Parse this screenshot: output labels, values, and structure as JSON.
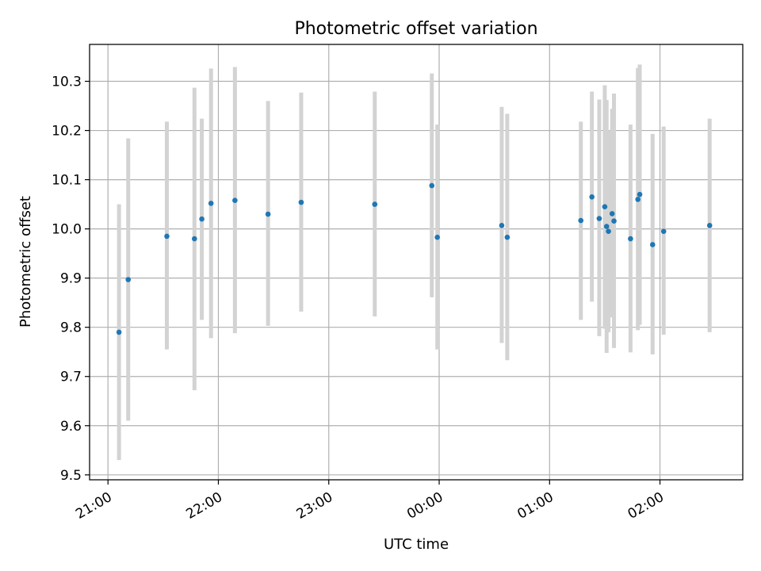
{
  "chart_data": {
    "type": "scatter",
    "title": "Photometric offset variation",
    "xlabel": "UTC time",
    "ylabel": "Photometric offset",
    "xlim_minutes": [
      -10,
      345
    ],
    "ylim": [
      9.49,
      10.375
    ],
    "grid": true,
    "colors": {
      "point": "#1f77b4",
      "errorbar": "#d3d3d3",
      "grid": "#b0b0b0"
    },
    "x_tick_labels": [
      "21:00",
      "22:00",
      "23:00",
      "00:00",
      "01:00",
      "02:00"
    ],
    "x_tick_minutes": [
      0,
      60,
      120,
      180,
      240,
      300
    ],
    "y_ticks": [
      9.5,
      9.6,
      9.7,
      9.8,
      9.9,
      10.0,
      10.1,
      10.2,
      10.3
    ],
    "y_tick_labels": [
      "9.5",
      "9.6",
      "9.7",
      "9.8",
      "9.9",
      "10.0",
      "10.1",
      "10.2",
      "10.3"
    ],
    "points": [
      {
        "time": "21:06",
        "y": 9.79,
        "lo": 9.53,
        "hi": 10.05
      },
      {
        "time": "21:11",
        "y": 9.897,
        "lo": 9.61,
        "hi": 10.184
      },
      {
        "time": "21:32",
        "y": 9.985,
        "lo": 9.755,
        "hi": 10.218
      },
      {
        "time": "21:47",
        "y": 9.98,
        "lo": 9.672,
        "hi": 10.287
      },
      {
        "time": "21:51",
        "y": 10.02,
        "lo": 9.815,
        "hi": 10.224
      },
      {
        "time": "21:56",
        "y": 10.052,
        "lo": 9.778,
        "hi": 10.326
      },
      {
        "time": "22:09",
        "y": 10.058,
        "lo": 9.788,
        "hi": 10.329
      },
      {
        "time": "22:27",
        "y": 10.03,
        "lo": 9.803,
        "hi": 10.26
      },
      {
        "time": "22:45",
        "y": 10.054,
        "lo": 9.832,
        "hi": 10.277
      },
      {
        "time": "23:25",
        "y": 10.05,
        "lo": 9.822,
        "hi": 10.279
      },
      {
        "time": "23:56",
        "y": 10.088,
        "lo": 9.861,
        "hi": 10.316
      },
      {
        "time": "23:59",
        "y": 9.983,
        "lo": 9.755,
        "hi": 10.212
      },
      {
        "time": "00:34",
        "y": 10.007,
        "lo": 9.768,
        "hi": 10.248
      },
      {
        "time": "00:37",
        "y": 9.983,
        "lo": 9.733,
        "hi": 10.234
      },
      {
        "time": "01:17",
        "y": 10.017,
        "lo": 9.815,
        "hi": 10.218
      },
      {
        "time": "01:23",
        "y": 10.065,
        "lo": 9.852,
        "hi": 10.279
      },
      {
        "time": "01:27",
        "y": 10.021,
        "lo": 9.782,
        "hi": 10.263
      },
      {
        "time": "01:30",
        "y": 10.045,
        "lo": 9.797,
        "hi": 10.292
      },
      {
        "time": "01:31",
        "y": 10.005,
        "lo": 9.748,
        "hi": 10.262
      },
      {
        "time": "01:32",
        "y": 9.995,
        "lo": 9.79,
        "hi": 10.2
      },
      {
        "time": "01:34",
        "y": 10.031,
        "lo": 9.82,
        "hi": 10.244
      },
      {
        "time": "01:35",
        "y": 10.016,
        "lo": 9.758,
        "hi": 10.275
      },
      {
        "time": "01:44",
        "y": 9.98,
        "lo": 9.749,
        "hi": 10.212
      },
      {
        "time": "01:48",
        "y": 10.06,
        "lo": 9.794,
        "hi": 10.327
      },
      {
        "time": "01:49",
        "y": 10.07,
        "lo": 9.805,
        "hi": 10.334
      },
      {
        "time": "01:56",
        "y": 9.968,
        "lo": 9.745,
        "hi": 10.193
      },
      {
        "time": "02:02",
        "y": 9.995,
        "lo": 9.785,
        "hi": 10.208
      },
      {
        "time": "02:27",
        "y": 10.007,
        "lo": 9.79,
        "hi": 10.224
      }
    ]
  }
}
